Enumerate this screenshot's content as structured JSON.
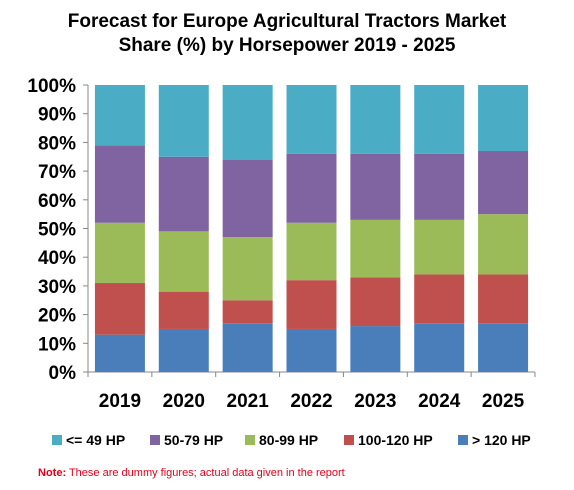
{
  "chart_data": {
    "type": "bar",
    "stacked": true,
    "title_line1": "Forecast for Europe Agricultural Tractors Market",
    "title_line2": "Share (%) by Horsepower 2019 - 2025",
    "categories": [
      "2019",
      "2020",
      "2021",
      "2022",
      "2023",
      "2024",
      "2025"
    ],
    "y_ticks": [
      "0%",
      "10%",
      "20%",
      "30%",
      "40%",
      "50%",
      "60%",
      "70%",
      "80%",
      "90%",
      "100%"
    ],
    "ylim": [
      0,
      100
    ],
    "grid": false,
    "legend_position": "bottom",
    "series": [
      {
        "name": "> 120 HP",
        "color": "#4a7ebb",
        "values": [
          13,
          15,
          17,
          15,
          16,
          17,
          17
        ]
      },
      {
        "name": "100-120 HP",
        "color": "#c0504d",
        "values": [
          18,
          13,
          8,
          17,
          17,
          17,
          17
        ]
      },
      {
        "name": "80-99 HP",
        "color": "#9bbb59",
        "values": [
          21,
          21,
          22,
          20,
          20,
          19,
          21
        ]
      },
      {
        "name": "50-79 HP",
        "color": "#8064a2",
        "values": [
          27,
          26,
          27,
          24,
          23,
          23,
          22
        ]
      },
      {
        "name": "<= 49 HP",
        "color": "#4bacc6",
        "values": [
          21,
          25,
          26,
          24,
          24,
          24,
          23
        ]
      }
    ],
    "legend_order": [
      "<= 49 HP",
      "50-79 HP",
      "80-99 HP",
      "100-120 HP",
      "> 120 HP"
    ]
  },
  "note": {
    "label": "Note:",
    "text": " These are dummy figures; actual data given in the report"
  }
}
